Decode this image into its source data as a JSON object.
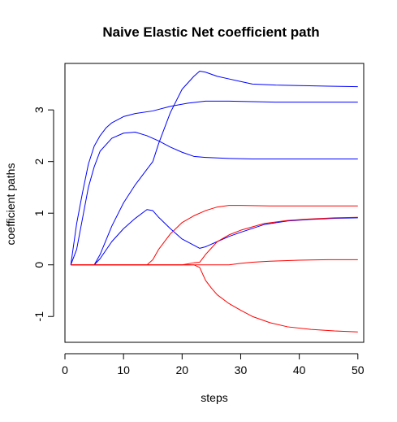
{
  "chart_data": {
    "type": "line",
    "title": "Naive Elastic Net coefficient path",
    "xlabel": "steps",
    "ylabel": "coefficient paths",
    "xlim": [
      0,
      51
    ],
    "ylim": [
      -1.5,
      3.9
    ],
    "xticks": [
      "0",
      "10",
      "20",
      "30",
      "40",
      "50"
    ],
    "yticks": [
      "-1",
      "0",
      "1",
      "2",
      "3"
    ],
    "grid": false,
    "legend": "none",
    "series": [
      {
        "color": "#0000ff",
        "x": [
          1,
          2,
          3,
          4,
          5,
          6,
          7,
          8,
          10,
          12,
          15,
          18,
          21,
          24,
          28,
          32,
          36,
          40,
          45,
          50
        ],
        "y": [
          0,
          0.8,
          1.4,
          1.95,
          2.3,
          2.5,
          2.65,
          2.75,
          2.87,
          2.93,
          2.98,
          3.07,
          3.13,
          3.17,
          3.17,
          3.16,
          3.15,
          3.15,
          3.15,
          3.15
        ]
      },
      {
        "color": "#0000ff",
        "x": [
          1,
          2,
          3,
          4,
          5,
          6,
          8,
          10,
          12,
          14,
          16,
          18,
          20,
          22,
          24,
          28,
          32,
          36,
          40,
          45,
          50
        ],
        "y": [
          0,
          0.3,
          0.9,
          1.5,
          1.9,
          2.2,
          2.45,
          2.55,
          2.57,
          2.5,
          2.4,
          2.28,
          2.18,
          2.1,
          2.08,
          2.06,
          2.05,
          2.05,
          2.05,
          2.05,
          2.05
        ]
      },
      {
        "color": "#0000ff",
        "x": [
          5,
          6,
          8,
          10,
          12,
          14,
          15,
          16,
          18,
          20,
          22,
          23,
          24,
          26,
          28,
          30,
          32,
          36,
          40,
          45,
          50
        ],
        "y": [
          0,
          0.2,
          0.75,
          1.2,
          1.55,
          1.85,
          2.0,
          2.35,
          2.95,
          3.4,
          3.65,
          3.75,
          3.73,
          3.65,
          3.6,
          3.55,
          3.5,
          3.48,
          3.47,
          3.46,
          3.45
        ]
      },
      {
        "color": "#0000ff",
        "x": [
          5,
          6,
          8,
          10,
          12,
          14,
          15,
          16,
          18,
          20,
          22,
          23,
          24,
          26,
          28,
          30,
          34,
          38,
          42,
          46,
          50
        ],
        "y": [
          0,
          0.12,
          0.45,
          0.7,
          0.9,
          1.07,
          1.05,
          0.92,
          0.7,
          0.5,
          0.38,
          0.32,
          0.35,
          0.45,
          0.55,
          0.63,
          0.78,
          0.85,
          0.88,
          0.9,
          0.91
        ]
      },
      {
        "color": "#ff0000",
        "x": [
          1,
          5,
          10,
          14,
          15,
          16,
          18,
          20,
          22,
          24,
          26,
          28,
          30,
          35,
          40,
          45,
          50
        ],
        "y": [
          0,
          0,
          0,
          0,
          0.1,
          0.3,
          0.6,
          0.82,
          0.95,
          1.05,
          1.12,
          1.15,
          1.15,
          1.14,
          1.14,
          1.14,
          1.14
        ]
      },
      {
        "color": "#ff0000",
        "x": [
          1,
          5,
          10,
          15,
          20,
          22,
          23,
          24,
          26,
          28,
          30,
          34,
          38,
          42,
          46,
          50
        ],
        "y": [
          0,
          0,
          0,
          0,
          0,
          0.04,
          0.05,
          0.2,
          0.45,
          0.58,
          0.67,
          0.8,
          0.86,
          0.89,
          0.91,
          0.92
        ]
      },
      {
        "color": "#ff0000",
        "x": [
          1,
          5,
          10,
          15,
          20,
          25,
          28,
          30,
          32,
          35,
          40,
          45,
          50
        ],
        "y": [
          0,
          0,
          0,
          0,
          0,
          0,
          0,
          0.03,
          0.05,
          0.07,
          0.09,
          0.1,
          0.1
        ]
      },
      {
        "color": "#ff0000",
        "x": [
          1,
          5,
          10,
          15,
          20,
          22,
          23,
          24,
          25,
          26,
          28,
          30,
          32,
          35,
          38,
          42,
          46,
          50
        ],
        "y": [
          0,
          0,
          0,
          0,
          0,
          0,
          -0.05,
          -0.3,
          -0.45,
          -0.58,
          -0.75,
          -0.88,
          -1.0,
          -1.12,
          -1.2,
          -1.25,
          -1.28,
          -1.3
        ]
      }
    ]
  }
}
